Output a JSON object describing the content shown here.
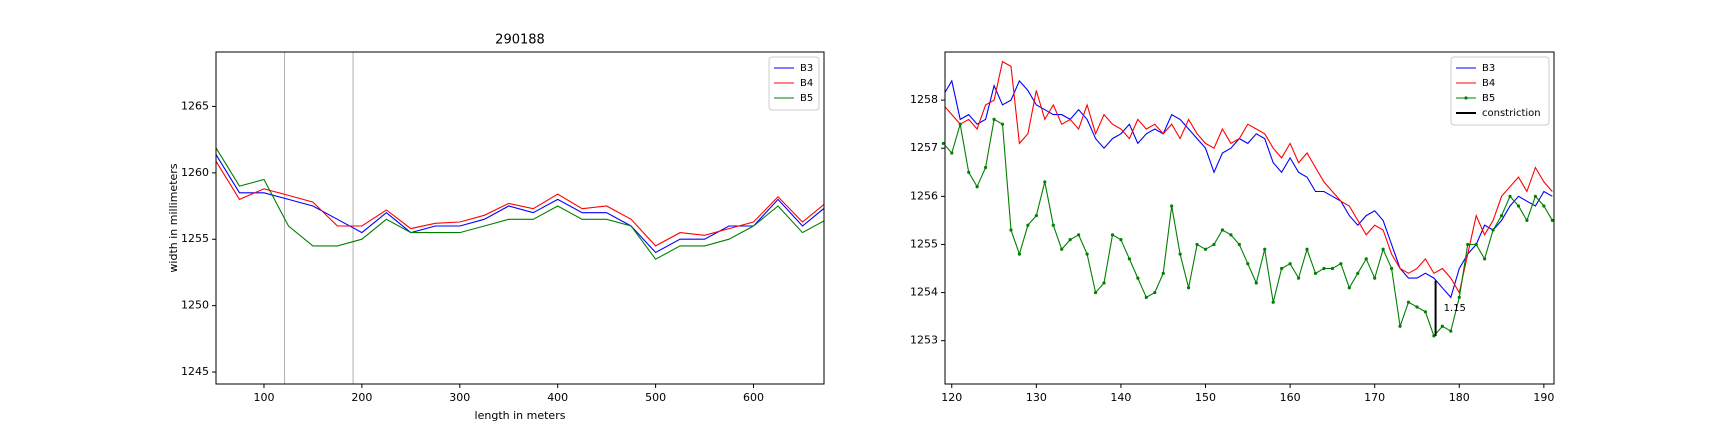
{
  "chart_data": [
    {
      "type": "line",
      "title": "290188",
      "xlabel": "length in meters",
      "ylabel": "width in millimeters",
      "x": [
        50,
        75,
        100,
        125,
        150,
        175,
        200,
        225,
        250,
        275,
        300,
        325,
        350,
        375,
        400,
        425,
        450,
        475,
        500,
        525,
        550,
        575,
        600,
        625,
        650,
        675
      ],
      "series": [
        {
          "name": "B3",
          "color": "#0000ff",
          "values": [
            1261.5,
            1258.5,
            1258.5,
            1258.0,
            1257.5,
            1256.5,
            1255.5,
            1257.0,
            1255.5,
            1256.0,
            1256.0,
            1256.5,
            1257.5,
            1257.0,
            1258.0,
            1257.0,
            1257.0,
            1256.0,
            1254.0,
            1255.0,
            1255.0,
            1256.0,
            1256.0,
            1258.0,
            1256.0,
            1257.5
          ]
        },
        {
          "name": "B4",
          "color": "#ff0000",
          "values": [
            1261.0,
            1258.0,
            1258.8,
            1258.3,
            1257.8,
            1256.0,
            1256.0,
            1257.2,
            1255.8,
            1256.2,
            1256.3,
            1256.8,
            1257.7,
            1257.3,
            1258.4,
            1257.3,
            1257.5,
            1256.5,
            1254.5,
            1255.5,
            1255.3,
            1255.8,
            1256.3,
            1258.2,
            1256.3,
            1257.8
          ]
        },
        {
          "name": "B5",
          "color": "#008000",
          "values": [
            1262.0,
            1259.0,
            1259.5,
            1256.0,
            1254.5,
            1254.5,
            1255.0,
            1256.5,
            1255.5,
            1255.5,
            1255.5,
            1256.0,
            1256.5,
            1256.5,
            1257.5,
            1256.5,
            1256.5,
            1256.0,
            1253.5,
            1254.5,
            1254.5,
            1255.0,
            1256.0,
            1257.5,
            1255.5,
            1256.5
          ]
        }
      ],
      "vlines": [
        121,
        191
      ],
      "vline_color": "#b0b0b0",
      "xlim": [
        51,
        672
      ],
      "ylim": [
        1244.1,
        1269.1
      ],
      "xticks": [
        100,
        200,
        300,
        400,
        500,
        600
      ],
      "yticks": [
        1245,
        1250,
        1255,
        1260,
        1265
      ],
      "legend": "upper right"
    },
    {
      "type": "line",
      "x": [
        119,
        120,
        121,
        122,
        123,
        124,
        125,
        126,
        127,
        128,
        129,
        130,
        131,
        132,
        133,
        134,
        135,
        136,
        137,
        138,
        139,
        140,
        141,
        142,
        143,
        144,
        145,
        146,
        147,
        148,
        149,
        150,
        151,
        152,
        153,
        154,
        155,
        156,
        157,
        158,
        159,
        160,
        161,
        162,
        163,
        164,
        165,
        166,
        167,
        168,
        169,
        170,
        171,
        172,
        173,
        174,
        175,
        176,
        177,
        178,
        179,
        180,
        181,
        182,
        183,
        184,
        185,
        186,
        187,
        188,
        189,
        190,
        191
      ],
      "series": [
        {
          "name": "B3",
          "color": "#0000ff",
          "values": [
            1258.1,
            1258.4,
            1257.6,
            1257.7,
            1257.5,
            1257.6,
            1258.3,
            1257.9,
            1258.0,
            1258.4,
            1258.2,
            1257.9,
            1257.8,
            1257.7,
            1257.7,
            1257.6,
            1257.8,
            1257.6,
            1257.2,
            1257.0,
            1257.2,
            1257.3,
            1257.5,
            1257.1,
            1257.3,
            1257.4,
            1257.3,
            1257.7,
            1257.6,
            1257.4,
            1257.2,
            1257.0,
            1256.5,
            1256.9,
            1257.0,
            1257.2,
            1257.1,
            1257.3,
            1257.2,
            1256.7,
            1256.5,
            1256.8,
            1256.5,
            1256.4,
            1256.1,
            1256.1,
            1256.0,
            1255.9,
            1255.6,
            1255.4,
            1255.6,
            1255.7,
            1255.5,
            1255.0,
            1254.5,
            1254.3,
            1254.3,
            1254.4,
            1254.3,
            1254.1,
            1253.9,
            1254.5,
            1254.8,
            1255.0,
            1255.4,
            1255.3,
            1255.5,
            1255.8,
            1256.0,
            1255.9,
            1255.8,
            1256.1,
            1256.0
          ]
        },
        {
          "name": "B4",
          "color": "#ff0000",
          "values": [
            1257.9,
            1257.7,
            1257.5,
            1257.6,
            1257.4,
            1257.9,
            1258.0,
            1258.8,
            1258.7,
            1257.1,
            1257.3,
            1258.2,
            1257.6,
            1257.9,
            1257.5,
            1257.6,
            1257.4,
            1257.9,
            1257.3,
            1257.7,
            1257.5,
            1257.4,
            1257.2,
            1257.6,
            1257.4,
            1257.5,
            1257.3,
            1257.5,
            1257.2,
            1257.6,
            1257.3,
            1257.1,
            1257.0,
            1257.4,
            1257.1,
            1257.2,
            1257.5,
            1257.4,
            1257.3,
            1257.0,
            1256.8,
            1257.1,
            1256.7,
            1256.9,
            1256.6,
            1256.3,
            1256.1,
            1255.9,
            1255.8,
            1255.5,
            1255.2,
            1255.4,
            1255.3,
            1254.8,
            1254.5,
            1254.4,
            1254.5,
            1254.7,
            1254.4,
            1254.5,
            1254.3,
            1254.0,
            1254.8,
            1255.6,
            1255.2,
            1255.5,
            1256.0,
            1256.2,
            1256.4,
            1256.1,
            1256.6,
            1256.3,
            1256.1
          ]
        },
        {
          "name": "B5",
          "color": "#008000",
          "marker": true,
          "values": [
            1257.1,
            1256.9,
            1257.5,
            1256.5,
            1256.2,
            1256.6,
            1257.6,
            1257.5,
            1255.3,
            1254.8,
            1255.4,
            1255.6,
            1256.3,
            1255.4,
            1254.9,
            1255.1,
            1255.2,
            1254.8,
            1254.0,
            1254.2,
            1255.2,
            1255.1,
            1254.7,
            1254.3,
            1253.9,
            1254.0,
            1254.4,
            1255.8,
            1254.8,
            1254.1,
            1255.0,
            1254.9,
            1255.0,
            1255.3,
            1255.2,
            1255.0,
            1254.6,
            1254.2,
            1254.9,
            1253.8,
            1254.5,
            1254.6,
            1254.3,
            1254.9,
            1254.4,
            1254.5,
            1254.5,
            1254.6,
            1254.1,
            1254.4,
            1254.7,
            1254.3,
            1254.9,
            1254.5,
            1253.3,
            1253.8,
            1253.7,
            1253.6,
            1253.1,
            1253.3,
            1253.2,
            1253.9,
            1255.0,
            1255.0,
            1254.7,
            1255.3,
            1255.6,
            1256.0,
            1255.8,
            1255.5,
            1256.0,
            1255.8,
            1255.5
          ]
        }
      ],
      "constriction": {
        "name": "constriction",
        "color": "#000000",
        "x": 177.2,
        "ymin": 1253.1,
        "ymax": 1254.25,
        "label": "1.15"
      },
      "xlim": [
        119.2,
        191.2
      ],
      "ylim": [
        1252.1,
        1259.0
      ],
      "xticks": [
        120,
        130,
        140,
        150,
        160,
        170,
        180,
        190
      ],
      "yticks": [
        1253,
        1254,
        1255,
        1256,
        1257,
        1258
      ],
      "legend": "upper right"
    }
  ]
}
